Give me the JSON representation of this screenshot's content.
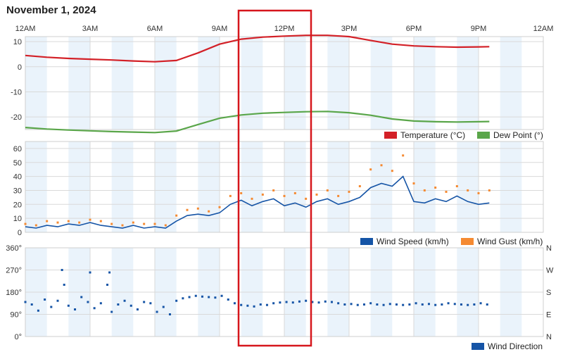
{
  "title": "November 1, 2024",
  "colors": {
    "temperature": "#d32027",
    "dew_point": "#5aa64a",
    "wind_speed": "#1554a6",
    "wind_gust": "#f58a32",
    "wind_direction": "#1554a6",
    "band": "#eaf3fb",
    "grid": "#d9d9d9",
    "highlight": "#d6161c"
  },
  "chart_data": [
    {
      "type": "line",
      "x_axis": {
        "range": [
          0,
          24
        ],
        "ticks": [
          0,
          3,
          6,
          9,
          12,
          15,
          18,
          21,
          24
        ],
        "tick_labels": [
          "12AM",
          "3AM",
          "6AM",
          "9AM",
          "12PM",
          "3PM",
          "6PM",
          "9PM",
          "12AM"
        ]
      },
      "ylim": [
        -25,
        12
      ],
      "y_ticks": [
        10,
        0,
        -10,
        -20
      ],
      "grid": true,
      "legend_position": "bottom-right",
      "series": [
        {
          "name": "Temperature (°C)",
          "x": [
            0,
            1,
            2,
            3,
            4,
            5,
            6,
            7,
            8,
            9,
            10,
            11,
            12,
            13,
            14,
            15,
            16,
            17,
            18,
            19,
            20,
            21,
            21.5
          ],
          "y": [
            4.5,
            3.8,
            3.3,
            3.0,
            2.7,
            2.3,
            2.0,
            2.5,
            5.5,
            9.0,
            11.0,
            11.8,
            12.2,
            12.5,
            12.5,
            12.0,
            10.5,
            9.0,
            8.3,
            8.0,
            7.8,
            7.9,
            8.0
          ]
        },
        {
          "name": "Dew Point (°)",
          "x": [
            0,
            1,
            2,
            3,
            4,
            5,
            6,
            7,
            8,
            9,
            10,
            11,
            12,
            13,
            14,
            15,
            16,
            17,
            18,
            19,
            20,
            21,
            21.5
          ],
          "y": [
            -24.2,
            -24.8,
            -25.2,
            -25.5,
            -25.8,
            -26.0,
            -26.2,
            -25.6,
            -23.0,
            -20.5,
            -19.2,
            -18.5,
            -18.2,
            -17.9,
            -17.8,
            -18.3,
            -19.3,
            -20.8,
            -21.6,
            -21.9,
            -22.0,
            -21.9,
            -21.8
          ]
        }
      ]
    },
    {
      "type": "line",
      "x_axis": {
        "range": [
          0,
          24
        ]
      },
      "ylim": [
        0,
        65
      ],
      "y_ticks": [
        60,
        50,
        40,
        30,
        20,
        10,
        0
      ],
      "grid": true,
      "legend_position": "bottom-right",
      "series": [
        {
          "name": "Wind Speed (km/h)",
          "x": [
            0,
            0.5,
            1,
            1.5,
            2,
            2.5,
            3,
            3.5,
            4,
            4.5,
            5,
            5.5,
            6,
            6.5,
            7,
            7.5,
            8,
            8.5,
            9,
            9.5,
            10,
            10.5,
            11,
            11.5,
            12,
            12.5,
            13,
            13.5,
            14,
            14.5,
            15,
            15.5,
            16,
            16.5,
            17,
            17.5,
            18,
            18.5,
            19,
            19.5,
            20,
            20.5,
            21,
            21.5
          ],
          "y": [
            4,
            3,
            5,
            4,
            6,
            5,
            7,
            5,
            4,
            3,
            5,
            3,
            4,
            3,
            8,
            12,
            13,
            12,
            14,
            20,
            23,
            19,
            22,
            24,
            19,
            21,
            18,
            22,
            24,
            20,
            22,
            25,
            32,
            35,
            33,
            40,
            22,
            21,
            24,
            22,
            26,
            22,
            20,
            21
          ]
        },
        {
          "name": "Wind Gust (km/h)",
          "x": [
            0,
            0.5,
            1,
            1.5,
            2,
            2.5,
            3,
            3.5,
            4,
            4.5,
            5,
            5.5,
            6,
            6.5,
            7,
            7.5,
            8,
            8.5,
            9,
            9.5,
            10,
            10.5,
            11,
            11.5,
            12,
            12.5,
            13,
            13.5,
            14,
            14.5,
            15,
            15.5,
            16,
            16.5,
            17,
            17.5,
            18,
            18.5,
            19,
            19.5,
            20,
            20.5,
            21,
            21.5
          ],
          "y": [
            6,
            5,
            8,
            7,
            8,
            7,
            9,
            8,
            6,
            5,
            7,
            6,
            6,
            5,
            12,
            16,
            17,
            15,
            18,
            26,
            28,
            24,
            27,
            30,
            26,
            28,
            24,
            27,
            30,
            26,
            29,
            33,
            45,
            48,
            44,
            55,
            35,
            30,
            32,
            29,
            33,
            30,
            28,
            30
          ]
        }
      ]
    },
    {
      "type": "scatter",
      "x_axis": {
        "range": [
          0,
          24
        ]
      },
      "ylim": [
        0,
        360
      ],
      "y_ticks": [
        360,
        270,
        180,
        90,
        0
      ],
      "y_tick_labels": [
        "360°",
        "270°",
        "180°",
        "90°",
        "0°"
      ],
      "y2_tick_labels": [
        "N",
        "W",
        "S",
        "E",
        "N"
      ],
      "grid": true,
      "legend_position": "bottom-right",
      "series": [
        {
          "name": "Wind Direction",
          "x": [
            0,
            0.3,
            0.6,
            0.9,
            1.2,
            1.5,
            1.7,
            1.8,
            2.0,
            2.3,
            2.6,
            2.9,
            3.0,
            3.2,
            3.5,
            3.8,
            3.9,
            4.0,
            4.3,
            4.6,
            4.9,
            5.2,
            5.5,
            5.8,
            6.1,
            6.4,
            6.7,
            7.0,
            7.3,
            7.6,
            7.9,
            8.2,
            8.5,
            8.8,
            9.1,
            9.4,
            9.7,
            10.0,
            10.3,
            10.6,
            10.9,
            11.2,
            11.5,
            11.8,
            12.1,
            12.4,
            12.7,
            13.0,
            13.3,
            13.6,
            13.9,
            14.2,
            14.5,
            14.8,
            15.1,
            15.4,
            15.7,
            16.0,
            16.3,
            16.6,
            16.9,
            17.2,
            17.5,
            17.8,
            18.1,
            18.4,
            18.7,
            19.0,
            19.3,
            19.6,
            19.9,
            20.2,
            20.5,
            20.8,
            21.1,
            21.4
          ],
          "y": [
            140,
            130,
            105,
            150,
            120,
            145,
            270,
            210,
            125,
            110,
            160,
            140,
            260,
            115,
            135,
            210,
            260,
            100,
            130,
            145,
            125,
            110,
            140,
            135,
            100,
            120,
            90,
            145,
            155,
            160,
            165,
            162,
            160,
            158,
            165,
            150,
            135,
            128,
            125,
            122,
            130,
            128,
            135,
            138,
            140,
            138,
            142,
            145,
            140,
            138,
            142,
            140,
            135,
            130,
            132,
            128,
            130,
            135,
            130,
            128,
            132,
            130,
            128,
            130,
            135,
            130,
            132,
            128,
            130,
            135,
            132,
            130,
            128,
            130,
            135,
            130
          ]
        }
      ]
    }
  ]
}
